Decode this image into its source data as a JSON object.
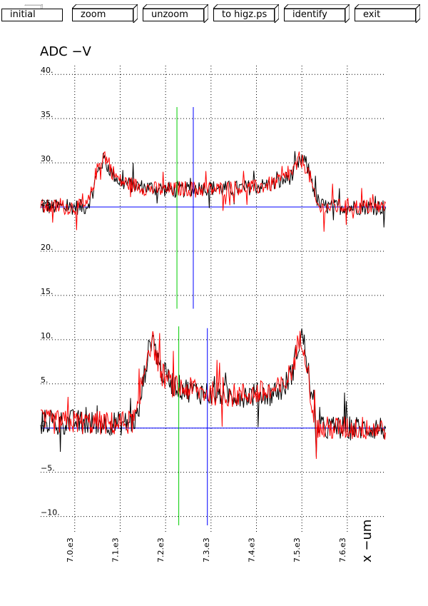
{
  "toolbar": {
    "buttons": [
      {
        "label": "initial"
      },
      {
        "label": "zoom"
      },
      {
        "label": "unzoom"
      },
      {
        "label": "to higz.ps"
      },
      {
        "label": "identify"
      },
      {
        "label": "exit"
      }
    ]
  },
  "chart_data": {
    "type": "line",
    "title": "ADC  −V",
    "xlabel": "x   −um",
    "ylabel": "ADC  −V",
    "xlim": [
      6925,
      7685
    ],
    "ylim": [
      -11,
      40.5
    ],
    "x_ticks": [
      7000,
      7100,
      7200,
      7300,
      7400,
      7500,
      7600
    ],
    "x_tick_labels": [
      "7.0.e3",
      "7.1.e3",
      "7.2.e3",
      "7.3.e3",
      "7.4.e3",
      "7.5.e3",
      "7.6.e3"
    ],
    "y_ticks": [
      40,
      35,
      30,
      25,
      20,
      15,
      10,
      5,
      0,
      -5,
      -10
    ],
    "y_tick_labels": [
      "40.",
      "35.",
      "30.",
      "25.",
      "20.",
      "15.",
      "10.",
      "5.",
      "0.",
      "−5.",
      "−10."
    ],
    "grid": true,
    "colors": {
      "black": "#000000",
      "red": "#ff0000",
      "green": "#00cc00",
      "blue": "#0000ff"
    },
    "baselines": [
      {
        "y": 25,
        "color": "#0000ff"
      },
      {
        "y": 0,
        "color": "#0000ff"
      }
    ],
    "markers": [
      {
        "x": 7225,
        "y1": 13.5,
        "y2": 36.3,
        "color": "#00cc00"
      },
      {
        "x": 7261,
        "y1": 13.5,
        "y2": 36.3,
        "color": "#0000ff"
      },
      {
        "x": 7229,
        "y1": -11,
        "y2": 11.5,
        "color": "#00cc00"
      },
      {
        "x": 7292,
        "y1": -11,
        "y2": 11.3,
        "color": "#0000ff"
      }
    ],
    "series": [
      {
        "group": "upper",
        "color": "#000000",
        "x": [
          6925,
          6950,
          6975,
          7000,
          7025,
          7035,
          7045,
          7055,
          7065,
          7080,
          7100,
          7130,
          7160,
          7200,
          7240,
          7280,
          7320,
          7360,
          7400,
          7440,
          7460,
          7480,
          7490,
          7500,
          7510,
          7520,
          7530,
          7540,
          7560,
          7600,
          7640,
          7685
        ],
        "y": [
          25,
          25,
          25,
          25,
          25,
          26,
          28,
          29.5,
          30.5,
          29,
          27.8,
          27.4,
          27.2,
          27.0,
          27.0,
          27.2,
          27.1,
          27.1,
          27.3,
          27.6,
          28.0,
          28.6,
          29.5,
          30.5,
          29.8,
          28.5,
          26.2,
          25.2,
          25.0,
          25.0,
          25.0,
          25.0
        ]
      },
      {
        "group": "upper",
        "color": "#ff0000",
        "x": [
          6925,
          6950,
          6975,
          7000,
          7025,
          7035,
          7045,
          7055,
          7065,
          7080,
          7100,
          7130,
          7160,
          7200,
          7240,
          7280,
          7320,
          7360,
          7400,
          7440,
          7460,
          7480,
          7490,
          7500,
          7510,
          7520,
          7530,
          7540,
          7560,
          7600,
          7640,
          7685
        ],
        "y": [
          25,
          25,
          25,
          25,
          25,
          26.2,
          28.5,
          30,
          31,
          29.2,
          27.9,
          27.5,
          27.1,
          26.9,
          27.1,
          27.0,
          27.0,
          27.2,
          27.2,
          27.7,
          28.2,
          29.0,
          29.8,
          30.2,
          29.5,
          28.0,
          25.6,
          24.8,
          25.0,
          25.1,
          25.0,
          25.0
        ]
      },
      {
        "group": "lower",
        "color": "#000000",
        "x": [
          6925,
          6950,
          6975,
          7000,
          7025,
          7050,
          7075,
          7100,
          7120,
          7130,
          7140,
          7150,
          7160,
          7170,
          7190,
          7220,
          7250,
          7280,
          7310,
          7340,
          7370,
          7400,
          7430,
          7460,
          7480,
          7490,
          7500,
          7510,
          7520,
          7530,
          7540,
          7560,
          7600,
          7640,
          7685
        ],
        "y": [
          0.8,
          0.7,
          0.6,
          0.8,
          0.5,
          0.6,
          0.6,
          0.5,
          0.6,
          0.8,
          1.5,
          5,
          8,
          10.5,
          6.5,
          4.8,
          4.3,
          4.0,
          3.8,
          3.8,
          3.7,
          3.8,
          3.9,
          4.5,
          6.5,
          9,
          10.5,
          8.5,
          3.8,
          0.5,
          0,
          0,
          0,
          0,
          0
        ]
      },
      {
        "group": "lower",
        "color": "#ff0000",
        "x": [
          6925,
          6950,
          6975,
          7000,
          7025,
          7050,
          7075,
          7100,
          7120,
          7130,
          7140,
          7150,
          7160,
          7170,
          7190,
          7220,
          7250,
          7280,
          7310,
          7340,
          7370,
          7400,
          7430,
          7460,
          7480,
          7490,
          7500,
          7510,
          7520,
          7530,
          7540,
          7560,
          7600,
          7640,
          7685
        ],
        "y": [
          0.7,
          0.7,
          0.6,
          0.7,
          0.6,
          0.6,
          0.5,
          0.5,
          0.7,
          0.9,
          2,
          5.5,
          8.5,
          10,
          6.2,
          4.6,
          4.4,
          4.1,
          3.9,
          3.7,
          3.8,
          3.9,
          4.0,
          4.7,
          6.8,
          9.2,
          10.2,
          8.0,
          3.5,
          0.3,
          -0.2,
          0,
          0,
          0,
          0
        ]
      }
    ]
  }
}
